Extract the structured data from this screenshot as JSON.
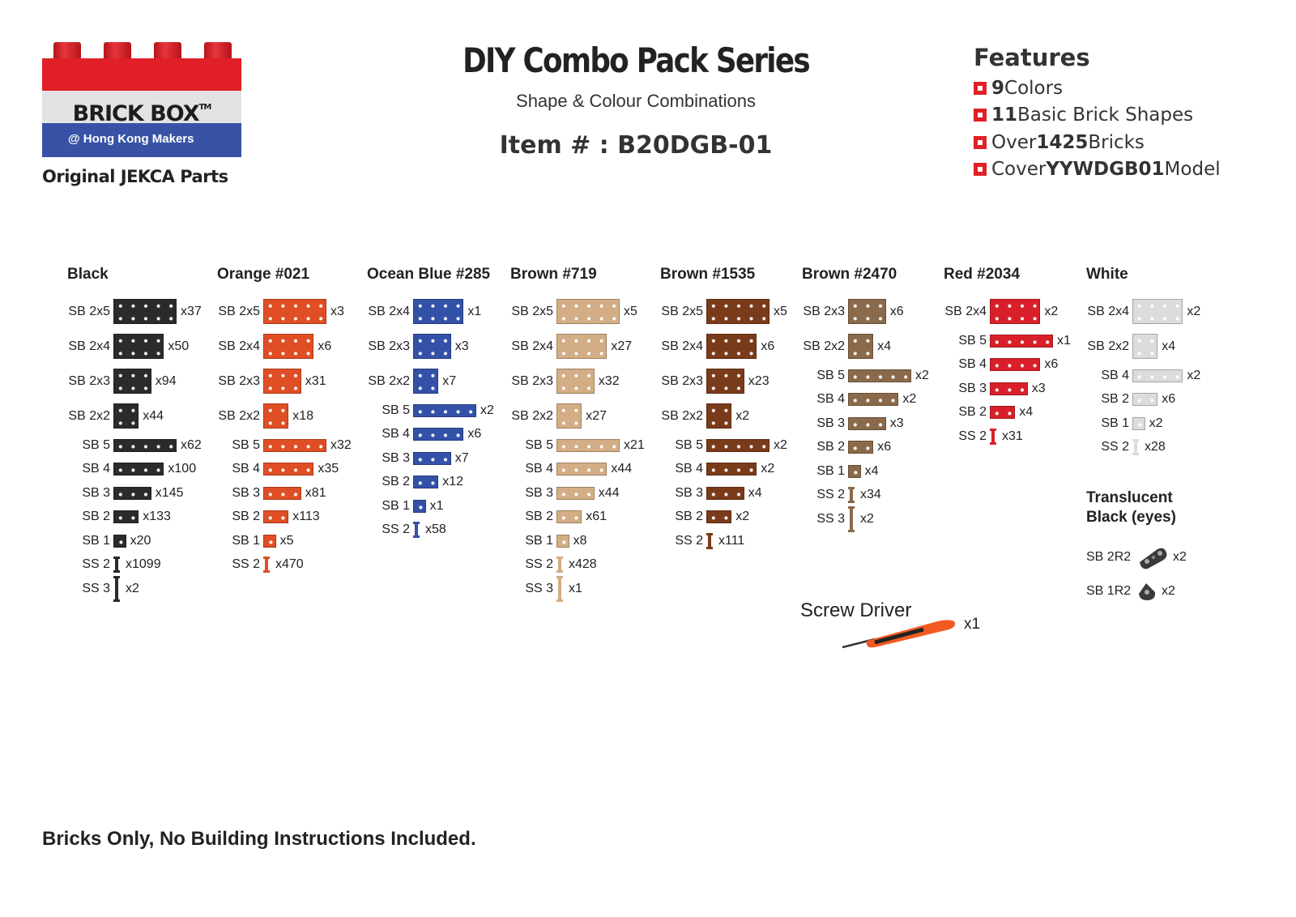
{
  "logo": {
    "brand": "BRICK BOX",
    "tm": "TM",
    "tagline": "@ Hong Kong Makers",
    "subtitle": "Original JEKCA Parts"
  },
  "header": {
    "title": "DIY Combo Pack Series",
    "subtitle": "Shape & Colour Combinations",
    "item": "Item # : B20DGB-01"
  },
  "features": {
    "title": "Features",
    "items": [
      {
        "bold": "9",
        "text": " Colors",
        "pre": ""
      },
      {
        "bold": "11",
        "text": " Basic Brick Shapes",
        "pre": ""
      },
      {
        "pre": "Over ",
        "bold": "1425",
        "text": " Bricks"
      },
      {
        "pre": "Cover ",
        "bold": "YYWDGB01",
        "text": " Model"
      }
    ],
    "bullet_color": "#e01f26"
  },
  "columns": [
    {
      "name": "Black",
      "color": "#2b2b2b",
      "items": [
        {
          "label": "SB 2x5",
          "count": "x37"
        },
        {
          "label": "SB 2x4",
          "count": "x50"
        },
        {
          "label": "SB 2x3",
          "count": "x94"
        },
        {
          "label": "SB 2x2",
          "count": "x44"
        },
        {
          "label": "SB 5",
          "count": "x62"
        },
        {
          "label": "SB 4",
          "count": "x100"
        },
        {
          "label": "SB 3",
          "count": "x145"
        },
        {
          "label": "SB 2",
          "count": "x133"
        },
        {
          "label": "SB 1",
          "count": "x20"
        },
        {
          "label": "SS 2",
          "count": "x1099"
        },
        {
          "label": "SS 3",
          "count": "x2"
        }
      ]
    },
    {
      "name": "Orange #021",
      "color": "#e04e25",
      "items": [
        {
          "label": "SB 2x5",
          "count": "x3"
        },
        {
          "label": "SB 2x4",
          "count": "x6"
        },
        {
          "label": "SB 2x3",
          "count": "x31"
        },
        {
          "label": "SB 2x2",
          "count": "x18"
        },
        {
          "label": "SB 5",
          "count": "x32"
        },
        {
          "label": "SB 4",
          "count": "x35"
        },
        {
          "label": "SB 3",
          "count": "x81"
        },
        {
          "label": "SB 2",
          "count": "x113"
        },
        {
          "label": "SB 1",
          "count": "x5"
        },
        {
          "label": "SS 2",
          "count": "x470"
        }
      ]
    },
    {
      "name": "Ocean Blue #285",
      "color": "#3451a8",
      "items": [
        {
          "label": "SB 2x4",
          "count": "x1"
        },
        {
          "label": "SB 2x3",
          "count": "x3"
        },
        {
          "label": "SB 2x2",
          "count": "x7"
        },
        {
          "label": "SB 5",
          "count": "x2"
        },
        {
          "label": "SB 4",
          "count": "x6"
        },
        {
          "label": "SB 3",
          "count": "x7"
        },
        {
          "label": "SB 2",
          "count": "x12"
        },
        {
          "label": "SB 1",
          "count": "x1"
        },
        {
          "label": "SS 2",
          "count": "x58"
        }
      ]
    },
    {
      "name": "Brown #719",
      "color": "#d3ad85",
      "items": [
        {
          "label": "SB 2x5",
          "count": "x5"
        },
        {
          "label": "SB 2x4",
          "count": "x27"
        },
        {
          "label": "SB 2x3",
          "count": "x32"
        },
        {
          "label": "SB 2x2",
          "count": "x27"
        },
        {
          "label": "SB 5",
          "count": "x21"
        },
        {
          "label": "SB 4",
          "count": "x44"
        },
        {
          "label": "SB 3",
          "count": "x44"
        },
        {
          "label": "SB 2",
          "count": "x61"
        },
        {
          "label": "SB 1",
          "count": "x8"
        },
        {
          "label": "SS 2",
          "count": "x428"
        },
        {
          "label": "SS 3",
          "count": "x1"
        }
      ]
    },
    {
      "name": "Brown #1535",
      "color": "#7a3b1a",
      "items": [
        {
          "label": "SB 2x5",
          "count": "x5"
        },
        {
          "label": "SB 2x4",
          "count": "x6"
        },
        {
          "label": "SB 2x3",
          "count": "x23"
        },
        {
          "label": "SB 2x2",
          "count": "x2"
        },
        {
          "label": "SB 5",
          "count": "x2"
        },
        {
          "label": "SB 4",
          "count": "x2"
        },
        {
          "label": "SB 3",
          "count": "x4"
        },
        {
          "label": "SB 2",
          "count": "x2"
        },
        {
          "label": "SS 2",
          "count": "x111"
        }
      ]
    },
    {
      "name": "Brown #2470",
      "color": "#8a6a4a",
      "items": [
        {
          "label": "SB 2x3",
          "count": "x6"
        },
        {
          "label": "SB 2x2",
          "count": "x4"
        },
        {
          "label": "SB 5",
          "count": "x2"
        },
        {
          "label": "SB 4",
          "count": "x2"
        },
        {
          "label": "SB 3",
          "count": "x3"
        },
        {
          "label": "SB 2",
          "count": "x6"
        },
        {
          "label": "SB 1",
          "count": "x4"
        },
        {
          "label": "SS 2",
          "count": "x34"
        },
        {
          "label": "SS 3",
          "count": "x2"
        }
      ]
    },
    {
      "name": "Red #2034",
      "color": "#d9202a",
      "items": [
        {
          "label": "SB 2x4",
          "count": "x2"
        },
        {
          "label": "SB 5",
          "count": "x1"
        },
        {
          "label": "SB 4",
          "count": "x6"
        },
        {
          "label": "SB 3",
          "count": "x3"
        },
        {
          "label": "SB 2",
          "count": "x4"
        },
        {
          "label": "SS 2",
          "count": "x31"
        }
      ]
    },
    {
      "name": "White",
      "color": "#dcdcdc",
      "items": [
        {
          "label": "SB 2x4",
          "count": "x2"
        },
        {
          "label": "SB 2x2",
          "count": "x4"
        },
        {
          "label": "SB 4",
          "count": "x2"
        },
        {
          "label": "SB 2",
          "count": "x6"
        },
        {
          "label": "SB 1",
          "count": "x2"
        },
        {
          "label": "SS 2",
          "count": "x28"
        }
      ]
    }
  ],
  "translucent": {
    "title_line1": "Translucent",
    "title_line2": "Black (eyes)",
    "color": "#3a3a3a",
    "items": [
      {
        "label": "SB 2R2",
        "count": "x2"
      },
      {
        "label": "SB 1R2",
        "count": "x2"
      }
    ]
  },
  "tool": {
    "label": "Screw Driver",
    "count": "x1"
  },
  "footer": "Bricks Only, No Building Instructions Included."
}
